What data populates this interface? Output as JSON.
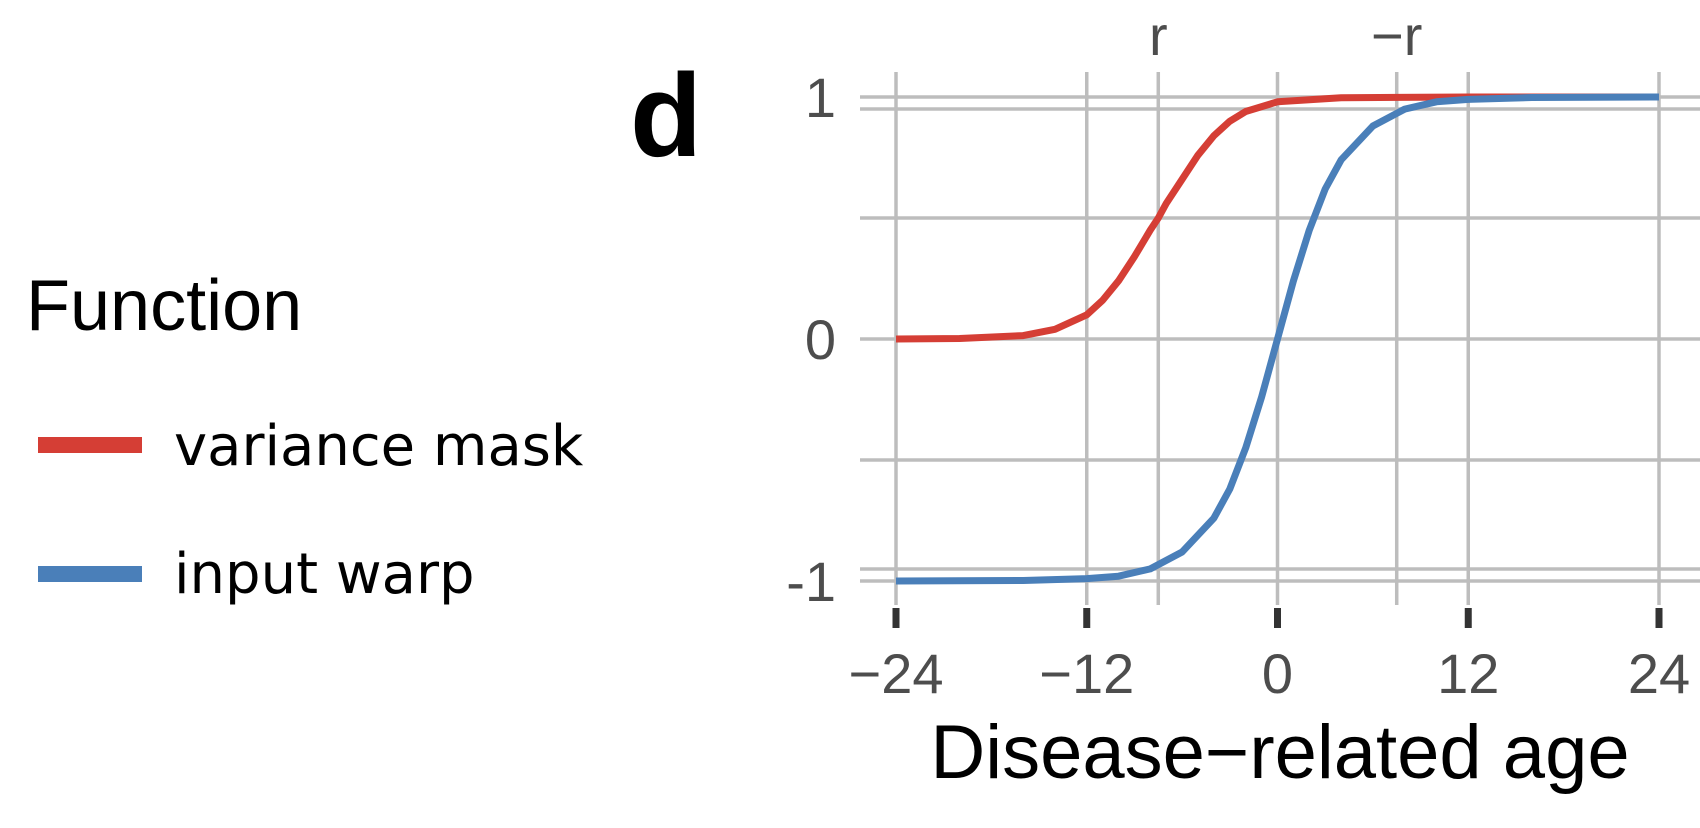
{
  "panel_label": "d",
  "legend": {
    "title": "Function",
    "items": [
      {
        "label": "variance mask",
        "color": "#d53e35"
      },
      {
        "label": "input warp",
        "color": "#4a7fb9"
      }
    ]
  },
  "chart_data": {
    "type": "line",
    "title": "",
    "xlabel": "Disease−related age",
    "ylabel": "",
    "xlim": [
      -24,
      24
    ],
    "ylim": [
      -1,
      1
    ],
    "grid": true,
    "legend_position": "left",
    "x_ticks": [
      {
        "value": -24,
        "label": "−24"
      },
      {
        "value": -12,
        "label": "−12"
      },
      {
        "value": 0,
        "label": "0"
      },
      {
        "value": 12,
        "label": "12"
      },
      {
        "value": 24,
        "label": "24"
      }
    ],
    "y_ticks": [
      {
        "value": 1,
        "label": "1"
      },
      {
        "value": 0,
        "label": "0"
      },
      {
        "value": -1,
        "label": "-1"
      }
    ],
    "top_ticks": [
      {
        "value": -7.5,
        "label": "r"
      },
      {
        "value": 7.5,
        "label": "−r"
      }
    ],
    "series": [
      {
        "name": "variance mask",
        "color": "#d53e35",
        "x": [
          -24,
          -20,
          -16,
          -14,
          -12,
          -11,
          -10,
          -9,
          -8,
          -7.5,
          -7,
          -6,
          -5,
          -4,
          -3,
          -2,
          0,
          4,
          12,
          24
        ],
        "y": [
          0.0,
          0.002,
          0.014,
          0.04,
          0.1,
          0.16,
          0.24,
          0.34,
          0.45,
          0.5,
          0.56,
          0.66,
          0.76,
          0.84,
          0.9,
          0.94,
          0.98,
          0.997,
          1.0,
          1.0
        ]
      },
      {
        "name": "input warp",
        "color": "#4a7fb9",
        "x": [
          -24,
          -16,
          -12,
          -10,
          -8,
          -6,
          -4,
          -3,
          -2,
          -1,
          0,
          1,
          2,
          3,
          4,
          6,
          8,
          10,
          12,
          16,
          24
        ],
        "y": [
          -1.0,
          -0.998,
          -0.99,
          -0.98,
          -0.95,
          -0.88,
          -0.74,
          -0.62,
          -0.45,
          -0.24,
          0.0,
          0.24,
          0.45,
          0.62,
          0.74,
          0.88,
          0.95,
          0.98,
          0.99,
          0.998,
          1.0
        ]
      }
    ]
  }
}
